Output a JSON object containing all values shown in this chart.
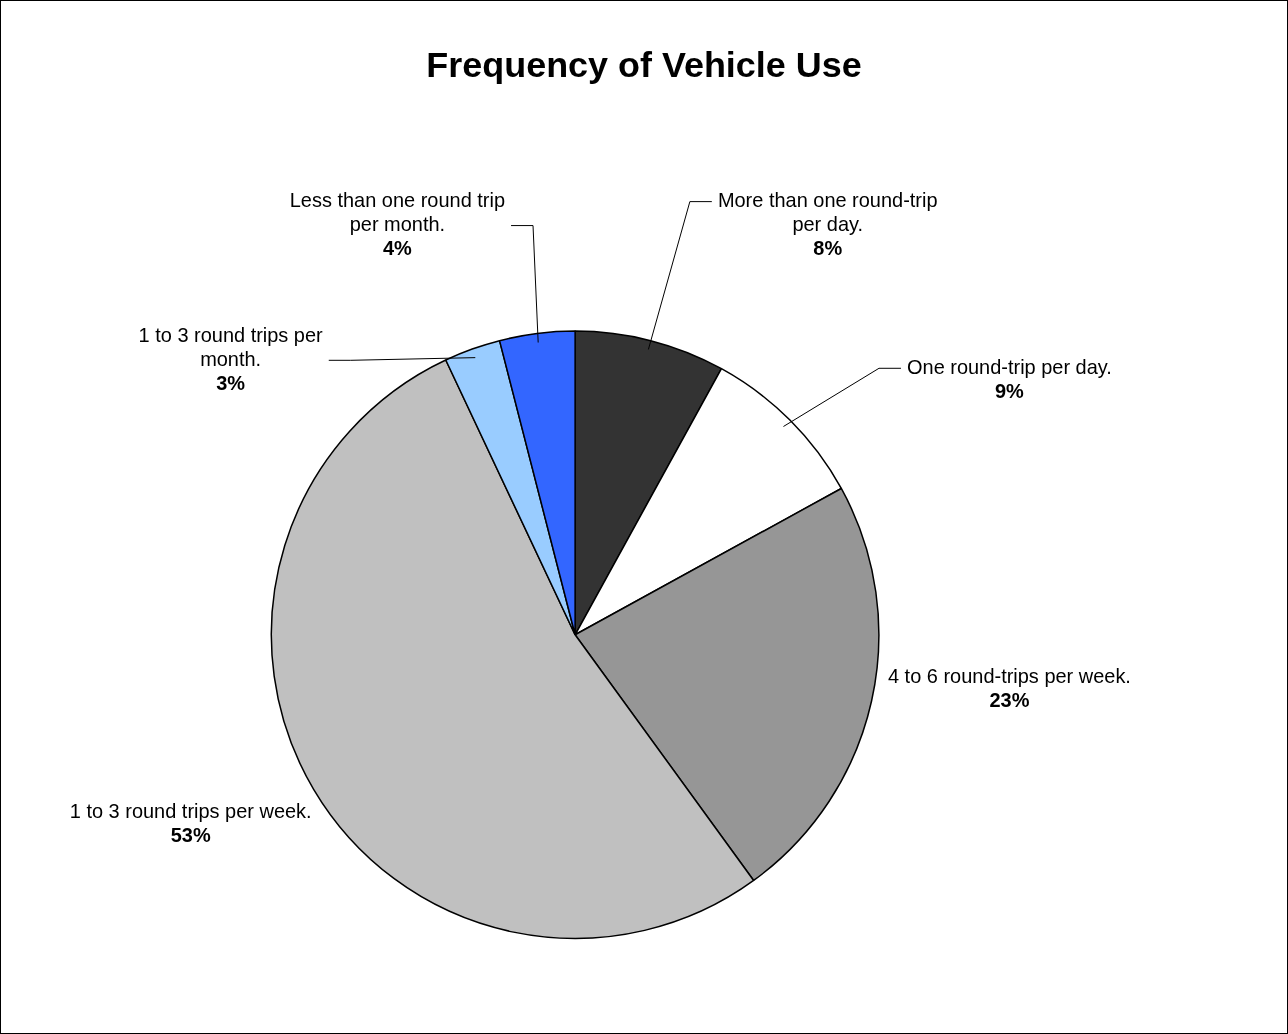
{
  "chart_data": {
    "type": "pie",
    "title": "Frequency of Vehicle Use",
    "categories": [
      "More than one round-trip per day.",
      "One round-trip per day.",
      "4 to 6 round-trips per week.",
      "1 to 3 round trips per week.",
      "1 to 3 round trips per month.",
      "Less than one round trip per month."
    ],
    "values": [
      8,
      9,
      23,
      53,
      3,
      4
    ],
    "value_labels": [
      "8%",
      "9%",
      "23%",
      "53%",
      "3%",
      "4%"
    ],
    "colors": [
      "#333333",
      "#ffffff",
      "#969696",
      "#c0c0c0",
      "#99ccff",
      "#3366ff"
    ],
    "legend": false
  }
}
